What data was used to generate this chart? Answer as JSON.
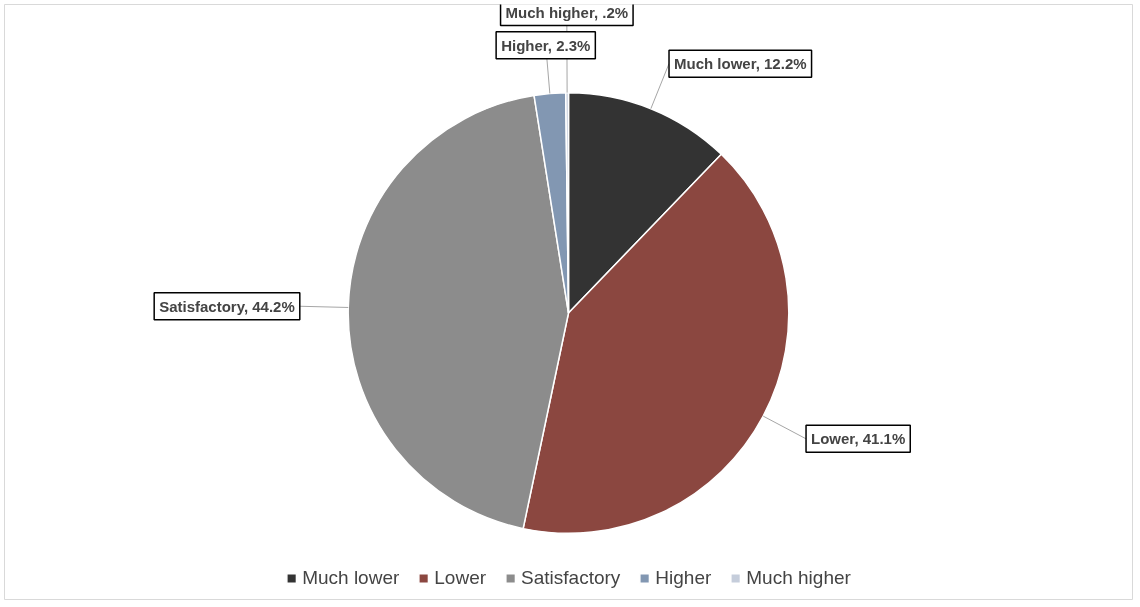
{
  "chart_data": {
    "type": "pie",
    "categories": [
      "Much lower",
      "Lower",
      "Satisfactory",
      "Higher",
      "Much higher"
    ],
    "values": [
      12.2,
      41.1,
      44.2,
      2.3,
      0.2
    ],
    "colors": [
      "#333333",
      "#8b4740",
      "#8c8c8c",
      "#8297b2",
      "#c5cddb"
    ],
    "value_labels": [
      "Much lower, 12.2%",
      "Lower, 41.1%",
      "Satisfactory, 44.2%",
      "Higher, 2.3%",
      "Much higher, .2%"
    ],
    "legend": "bottom"
  }
}
